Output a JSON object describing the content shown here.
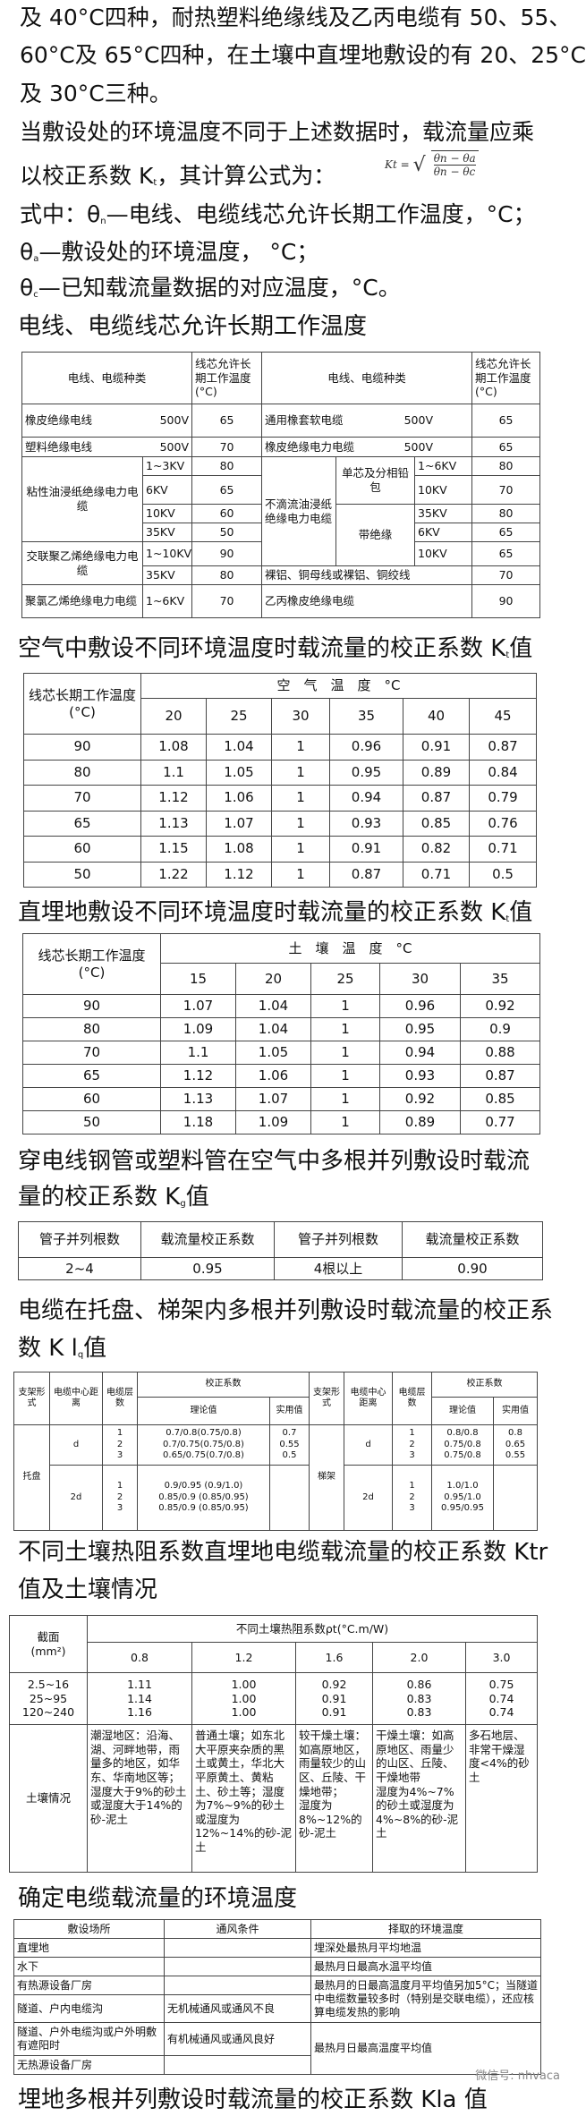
{
  "intro": {
    "line1": "及 40°C四种，耐热塑料绝缘线及乙丙电缆有 50、55、",
    "line2": "60°C及 65°C四种，在土壤中直埋地敷设的有 20、25°C",
    "line3": "及 30°C三种。",
    "line4": "当敷设处的环境温度不同于上述数据时，载流量应乘",
    "line5_a": "以校正系数 K",
    "line5_sub": "t",
    "line5_b": "，其计算公式为：",
    "formula": {
      "lhs": "Kt =",
      "sqrt": "√",
      "num": "θn − θa",
      "den": "θn − θc"
    },
    "line6_a": "式中：θ",
    "line6_sub": "n",
    "line6_b": "—电线、电缆线芯允许长期工作温度，°C；",
    "line7_a": "θ",
    "line7_sub": "a",
    "line7_b": "—敷设处的环境温度，  °C；",
    "line8_a": "θ",
    "line8_sub": "c",
    "line8_b": "—已知载流量数据的对应温度，°C。"
  },
  "t1": {
    "title": "电线、电缆线芯允许长期工作温度",
    "h_type": "电线、电缆种类",
    "h_temp": "线芯允许长期工作温度(°C)",
    "h_temp2": "线芯允许长期工作温度(°C)",
    "r1": [
      "橡皮绝缘电线",
      "500V",
      "65",
      "通用橡套软电缆",
      "500V",
      "65"
    ],
    "r2": [
      "塑料绝缘电线",
      "500V",
      "70",
      "橡皮绝缘电力电缆",
      "500V",
      "65"
    ],
    "paper": "粘性油浸纸绝缘电力电缆",
    "paper_rows": [
      [
        "1~3KV",
        "80"
      ],
      [
        "6KV",
        "65"
      ],
      [
        "10KV",
        "60"
      ],
      [
        "35KV",
        "50"
      ]
    ],
    "drip": "不滴流油浸纸\n绝缘电力电缆",
    "single": "单芯及分相铅包",
    "belt": "带绝缘",
    "drip_rows": [
      [
        "1~6KV",
        "80"
      ],
      [
        "10KV",
        "70"
      ],
      [
        "35KV",
        "80"
      ],
      [
        "6KV",
        "65"
      ],
      [
        "10KV",
        "65"
      ]
    ],
    "xlpe": "交联聚乙烯绝缘电力电缆",
    "xlpe_rows": [
      [
        "1~10KV",
        "90"
      ],
      [
        "35KV",
        "80"
      ]
    ],
    "bare": "裸铝、铜母线或裸铝、铜绞线",
    "bare_temp": "70",
    "pvc": "聚氯乙烯绝缘电力电缆",
    "pvc_v": "1~6KV",
    "pvc_temp": "70",
    "epr": "乙丙橡皮绝缘电缆",
    "epr_temp": "90"
  },
  "t2": {
    "title_a": "空气中敷设不同环境温度时载流量的校正系数 K",
    "title_sub": "t",
    "title_b": "值",
    "row_header": "线芯长期工作温度(°C)",
    "col_group": "空　气　温　度　°C",
    "cols": [
      "20",
      "25",
      "30",
      "35",
      "40",
      "45"
    ],
    "rows": [
      [
        "90",
        "1.08",
        "1.04",
        "1",
        "0.96",
        "0.91",
        "0.87"
      ],
      [
        "80",
        "1.1",
        "1.05",
        "1",
        "0.95",
        "0.89",
        "0.84"
      ],
      [
        "70",
        "1.12",
        "1.06",
        "1",
        "0.94",
        "0.87",
        "0.79"
      ],
      [
        "65",
        "1.13",
        "1.07",
        "1",
        "0.93",
        "0.85",
        "0.76"
      ],
      [
        "60",
        "1.15",
        "1.08",
        "1",
        "0.91",
        "0.82",
        "0.71"
      ],
      [
        "50",
        "1.22",
        "1.12",
        "1",
        "0.87",
        "0.71",
        "0.5"
      ]
    ]
  },
  "t3": {
    "title_a": "直埋地敷设不同环境温度时载流量的校正系数 K",
    "title_sub": "t",
    "title_b": "值",
    "row_header": "线芯长期工作温度(°C)",
    "col_group": "土　壤　温　度　°C",
    "cols": [
      "15",
      "20",
      "25",
      "30",
      "35"
    ],
    "rows": [
      [
        "90",
        "1.07",
        "1.04",
        "1",
        "0.96",
        "0.92"
      ],
      [
        "80",
        "1.09",
        "1.04",
        "1",
        "0.95",
        "0.9"
      ],
      [
        "70",
        "1.1",
        "1.05",
        "1",
        "0.94",
        "0.88"
      ],
      [
        "65",
        "1.12",
        "1.06",
        "1",
        "0.93",
        "0.87"
      ],
      [
        "60",
        "1.13",
        "1.07",
        "1",
        "0.92",
        "0.85"
      ],
      [
        "50",
        "1.18",
        "1.09",
        "1",
        "0.89",
        "0.77"
      ]
    ]
  },
  "t4": {
    "title_line1": "穿电线钢管或塑料管在空气中多根并列敷设时载流",
    "title_a": "量的校正系数 K",
    "title_sub": "g",
    "title_b": "值",
    "headers": [
      "管子并列根数",
      "载流量校正系数",
      "管子并列根数",
      "载流量校正系数"
    ],
    "row": [
      "2~4",
      "0.95",
      "4根以上",
      "0.90"
    ]
  },
  "t5": {
    "title_line1": "电缆在托盘、梯架内多根并列敷设时载流量的校正系",
    "title_a": "数 K l",
    "title_sub": "q",
    "title_b": "值",
    "h_form": "支架形式",
    "h_dist": "电缆中心距离",
    "h_layers": "电缆层数",
    "h_coef": "校正系数",
    "h_theory": "理论值",
    "h_practical": "实用值",
    "tray": "托盘",
    "ladder": "梯架",
    "tray_d": {
      "dist": "d",
      "layers": "1\n2\n3",
      "theory": "0.7/0.8(0.75/0.8)\n0.7/0.75(0.75/0.8)\n0.65/0.75(0.7/0.8)",
      "practical": "0.7\n0.55\n0.5"
    },
    "tray_2d": {
      "dist": "2d",
      "layers": "1\n2\n3",
      "theory": "0.9/0.95 (0.9/1.0)\n0.85/0.9 (0.85/0.95)\n0.85/0.9 (0.85/0.95)",
      "practical": ""
    },
    "ladder_d": {
      "dist": "d",
      "layers": "1\n2\n3",
      "theory": "0.8/0.8\n0.75/0.8\n0.75/0.8",
      "practical": "0.8\n0.65\n0.55"
    },
    "ladder_2d": {
      "dist": "2d",
      "layers": "1\n2\n3",
      "theory": "1.0/1.0\n0.95/1.0\n0.95/0.95",
      "practical": ""
    }
  },
  "t6": {
    "title_line1": "不同土壤热阻系数直埋地电缆载流量的校正系数 Ktr",
    "title_line2": "值及土壤情况",
    "h_section": "截面\n(mm²)",
    "h_group": "不同土壤热阻系数ρt(°C.m/W)",
    "cols": [
      "0.8",
      "1.2",
      "1.6",
      "2.0",
      "3.0"
    ],
    "sections": "2.5~16\n25~95\n120~240",
    "values": [
      "1.11\n1.14\n1.16",
      "1.00\n1.00\n1.00",
      "0.92\n0.91\n0.91",
      "0.86\n0.83\n0.83",
      "0.75\n0.74\n0.74"
    ],
    "soil_label": "土壤情况",
    "soil": [
      "潮湿地区：沿海、湖、河畔地带，雨量多的地区，如华东、华南地区等；\n湿度大于9%的砂土或湿度大于14%的砂-泥土",
      "普通土壤；如东北大平原夹杂质的黑土或黄土，华北大平原黄土、黄粘土、砂土等；湿度为7%~9%的砂土或湿度为12%~14%的砂-泥土",
      "较干燥土壤：如高原地区，雨量较少的山区、丘陵、干燥地带；\n湿度为8%~12%的砂-泥土",
      "干燥土壤：如高原地区、雨量少的山区、丘陵、干燥地带\n湿度为4%~7%的砂土或湿度为4%~8%的砂-泥土",
      "多石地层、非常干燥湿度<4%的砂土"
    ]
  },
  "t7": {
    "title": "确定电缆载流量的环境温度",
    "headers": [
      "敷设场所",
      "通风条件",
      "择取的环境温度"
    ],
    "r1": [
      "直埋地",
      "",
      "埋深处最热月平均地温"
    ],
    "r2": [
      "水下",
      "",
      "最热月日最高水温平均值"
    ],
    "r3": [
      "有热源设备厂房",
      ""
    ],
    "r34_temp": "最热月的日最高温度月平均值另加5°C；当隧道中电缆数量较多时（特别是交联电缆），还应核算电缆发热的影响",
    "r4": [
      "隧道、户内电缆沟",
      "无机械通风或通风不良"
    ],
    "r5": [
      "隧道、户外电缆沟或户外明敷有遮阳时",
      "有机械通风或通风良好"
    ],
    "r56_temp": "最热月日最高温度平均值",
    "r6": [
      "无热源设备厂房",
      ""
    ]
  },
  "footer": {
    "title": "埋地多根并列敷设时载流量的校正系数 Kla 值",
    "watermark": "微信号: nhvaca"
  }
}
